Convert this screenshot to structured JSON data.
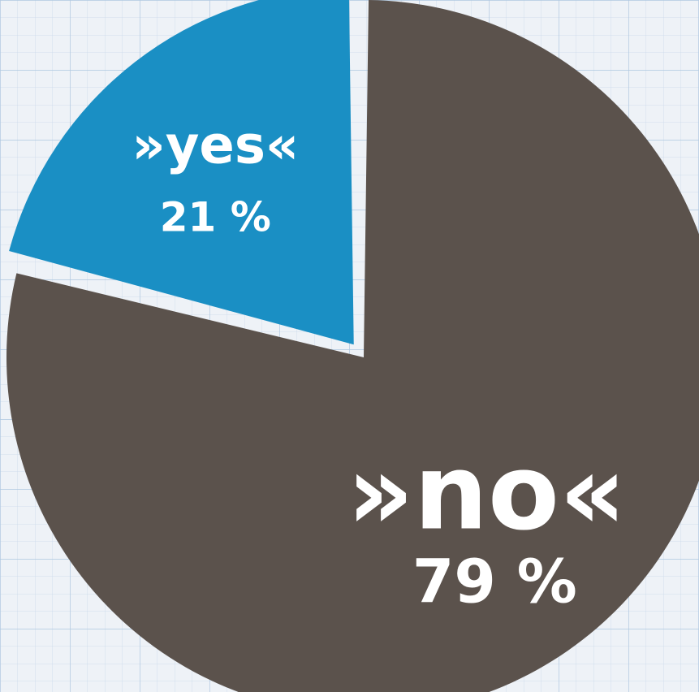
{
  "chart_data": {
    "type": "pie",
    "categories": [
      "»yes«",
      "»no«"
    ],
    "values": [
      21,
      79
    ],
    "value_labels": [
      "21 %",
      "79 %"
    ],
    "colors": [
      "#1a8fc4",
      "#5b524c"
    ],
    "exploded": "»yes«"
  },
  "background": {
    "paper": "#eef2f7",
    "grid_minor": "#c9d9ea",
    "grid_major": "#aec8e0"
  }
}
